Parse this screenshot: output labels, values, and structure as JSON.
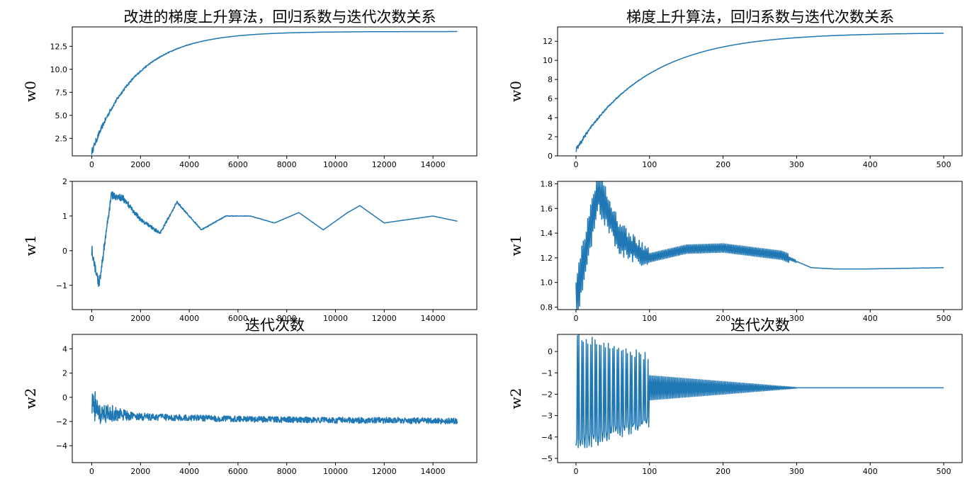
{
  "figure": {
    "left_title": "改进的梯度上升算法，回归系数与迭代次数关系",
    "right_title": "梯度上升算法，回归系数与迭代次数关系",
    "left_xlabel": "迭代次数",
    "right_xlabel": "迭代次数"
  },
  "chart_data": [
    {
      "id": "left-w0",
      "type": "line",
      "title": "改进的梯度上升算法，回归系数与迭代次数关系",
      "xlabel": "",
      "ylabel": "w0",
      "xlim": [
        -800,
        15800
      ],
      "ylim": [
        0.6,
        14.6
      ],
      "xticks": [
        0,
        2000,
        4000,
        6000,
        8000,
        10000,
        12000,
        14000
      ],
      "yticks": [
        2.5,
        5.0,
        7.5,
        10.0,
        12.5
      ],
      "ytick_labels": [
        "2.5",
        "5.0",
        "7.5",
        "10.0",
        "12.5"
      ],
      "curve": {
        "kind": "saturating",
        "start": 1.0,
        "end": 14.1,
        "tau": 1800,
        "noise": 0.35,
        "noise_decay": 1500
      },
      "series": [
        {
          "x": [
            0,
            500,
            1000,
            2000,
            3000,
            4000,
            6000,
            8000,
            10000,
            12000,
            14000,
            15000
          ],
          "y": [
            1.0,
            6.8,
            10.2,
            11.6,
            12.4,
            12.8,
            13.3,
            13.6,
            13.8,
            13.9,
            14.0,
            14.0
          ]
        }
      ]
    },
    {
      "id": "left-w1",
      "type": "line",
      "title": "",
      "xlabel": "",
      "ylabel": "w1",
      "xlim": [
        -800,
        15800
      ],
      "ylim": [
        -1.7,
        2.0
      ],
      "xticks": [
        0,
        2000,
        4000,
        6000,
        8000,
        10000,
        12000,
        14000
      ],
      "yticks": [
        -1,
        0,
        1,
        2
      ],
      "ytick_labels": [
        "−1",
        "0",
        "1",
        "2"
      ],
      "curve": {
        "kind": "wander",
        "noise": 0.18,
        "noise_decay": 2000
      },
      "series": [
        {
          "x": [
            0,
            300,
            800,
            1300,
            2000,
            2800,
            3500,
            4500,
            5500,
            6500,
            7500,
            8500,
            9500,
            10500,
            11000,
            12000,
            13000,
            14000,
            15000
          ],
          "y": [
            0.0,
            -1.0,
            1.6,
            1.5,
            0.9,
            0.5,
            1.4,
            0.6,
            1.0,
            1.0,
            0.8,
            1.1,
            0.6,
            1.1,
            1.3,
            0.8,
            0.9,
            1.0,
            0.85
          ]
        }
      ]
    },
    {
      "id": "left-w2",
      "type": "line",
      "title": "",
      "xlabel": "迭代次数",
      "ylabel": "w2",
      "xlim": [
        -800,
        15800
      ],
      "ylim": [
        -5.4,
        5.2
      ],
      "xticks": [
        0,
        2000,
        4000,
        6000,
        8000,
        10000,
        12000,
        14000
      ],
      "yticks": [
        -4,
        -2,
        0,
        2,
        4
      ],
      "ytick_labels": [
        "−4",
        "−2",
        "0",
        "2",
        "4"
      ],
      "curve": {
        "kind": "noisy",
        "noise": 1.4,
        "noise_decay": 700,
        "base_noise": 0.25
      },
      "series": [
        {
          "x": [
            0,
            200,
            500,
            1000,
            2000,
            4000,
            6000,
            8000,
            10000,
            12000,
            14000,
            15000
          ],
          "y": [
            0.0,
            -1.0,
            -1.2,
            -1.4,
            -1.6,
            -1.7,
            -1.8,
            -1.85,
            -1.9,
            -1.9,
            -1.95,
            -1.95
          ]
        }
      ]
    },
    {
      "id": "right-w0",
      "type": "line",
      "title": "梯度上升算法，回归系数与迭代次数关系",
      "xlabel": "",
      "ylabel": "w0",
      "xlim": [
        -25,
        525
      ],
      "ylim": [
        0,
        13.5
      ],
      "xticks": [
        0,
        100,
        200,
        300,
        400,
        500
      ],
      "yticks": [
        0,
        2,
        4,
        6,
        8,
        10,
        12
      ],
      "ytick_labels": [
        "0",
        "2",
        "4",
        "6",
        "8",
        "10",
        "12"
      ],
      "curve": {
        "kind": "saturating",
        "start": 0.6,
        "end": 12.9,
        "tau": 95,
        "noise": 0.25,
        "noise_decay": 40
      },
      "series": [
        {
          "x": [
            0,
            20,
            40,
            60,
            80,
            100,
            150,
            200,
            250,
            300,
            400,
            500
          ],
          "y": [
            0.6,
            3.5,
            6.2,
            7.6,
            9.0,
            9.6,
            11.0,
            11.9,
            12.4,
            12.6,
            12.7,
            12.8
          ]
        }
      ]
    },
    {
      "id": "right-w1",
      "type": "line",
      "title": "",
      "xlabel": "",
      "ylabel": "w1",
      "xlim": [
        -25,
        525
      ],
      "ylim": [
        0.78,
        1.82
      ],
      "xticks": [
        0,
        100,
        200,
        300,
        400,
        500
      ],
      "yticks": [
        0.8,
        1.0,
        1.2,
        1.4,
        1.6,
        1.8
      ],
      "ytick_labels": [
        "0.8",
        "1.0",
        "1.2",
        "1.4",
        "1.6",
        "1.8"
      ],
      "curve": {
        "kind": "oscillating_w1",
        "end": 1.12
      },
      "series": [
        {
          "x": [
            0,
            30,
            60,
            100,
            150,
            200,
            280,
            320,
            350,
            400,
            500
          ],
          "y": [
            0.85,
            1.75,
            1.35,
            1.2,
            1.27,
            1.28,
            1.22,
            1.12,
            1.11,
            1.11,
            1.12
          ]
        }
      ]
    },
    {
      "id": "right-w2",
      "type": "line",
      "title": "",
      "xlabel": "迭代次数",
      "ylabel": "w2",
      "xlim": [
        -25,
        525
      ],
      "ylim": [
        -5.2,
        0.8
      ],
      "xticks": [
        0,
        100,
        200,
        300,
        400,
        500
      ],
      "yticks": [
        -5,
        -4,
        -3,
        -2,
        -1,
        0
      ],
      "ytick_labels": [
        "−5",
        "−4",
        "−3",
        "−2",
        "−1",
        "0"
      ],
      "curve": {
        "kind": "oscillating_w2",
        "center": -1.7
      },
      "series": [
        {
          "x": [
            0,
            50,
            100,
            200,
            300,
            400,
            500
          ],
          "y": [
            -1.7,
            -1.7,
            -1.7,
            -1.7,
            -1.7,
            -1.7,
            -1.72
          ]
        }
      ]
    }
  ]
}
